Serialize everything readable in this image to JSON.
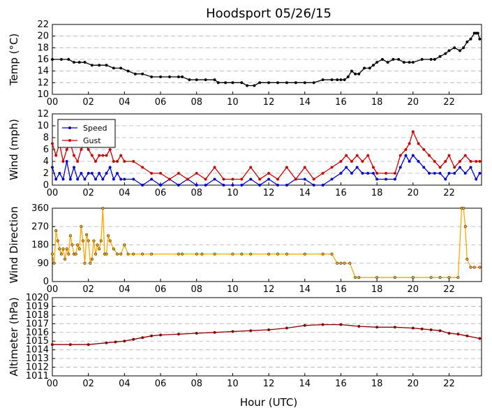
{
  "figure": {
    "title": "Hoodsport 05/26/15",
    "xlabel": "Hour (UTC)",
    "xtick_labels": [
      "00",
      "02",
      "04",
      "06",
      "08",
      "10",
      "12",
      "14",
      "16",
      "18",
      "20",
      "22"
    ],
    "xtick_hours": [
      0,
      2,
      4,
      6,
      8,
      10,
      12,
      14,
      16,
      18,
      20,
      22
    ],
    "xlim": [
      0,
      23.8
    ]
  },
  "chart_data": [
    {
      "type": "line",
      "ylabel": "Temp (°C)",
      "ylim": [
        10,
        22
      ],
      "yticks": [
        10,
        12,
        14,
        16,
        18,
        20,
        22
      ],
      "grid": true,
      "series": [
        {
          "color": "#000000",
          "x": [
            0,
            0.5,
            0.9,
            1.2,
            1.5,
            1.8,
            2.2,
            2.6,
            3.0,
            3.4,
            3.8,
            4.2,
            4.6,
            5.0,
            5.5,
            6.0,
            6.5,
            7.0,
            7.2,
            7.6,
            8.0,
            8.5,
            9.0,
            9.2,
            9.6,
            10.0,
            10.5,
            10.8,
            11.2,
            11.5,
            12.0,
            12.5,
            13.0,
            13.5,
            14.0,
            14.5,
            15.0,
            15.5,
            15.8,
            16.0,
            16.2,
            16.4,
            16.6,
            16.8,
            17.0,
            17.3,
            17.6,
            17.8,
            18.0,
            18.3,
            18.6,
            18.9,
            19.2,
            19.5,
            19.8,
            20.0,
            20.5,
            21.0,
            21.2,
            21.5,
            21.8,
            22.0,
            22.3,
            22.6,
            22.8,
            23.0,
            23.2,
            23.4,
            23.5,
            23.6,
            23.7
          ],
          "y": [
            16,
            16,
            16,
            15.5,
            15.5,
            15.5,
            15,
            15,
            15,
            14.5,
            14.5,
            14,
            13.5,
            13.5,
            13,
            13,
            13,
            13,
            13,
            12.5,
            12.5,
            12.5,
            12.5,
            12,
            12,
            12,
            12,
            11.5,
            11.5,
            12,
            12,
            12,
            12,
            12,
            12,
            12,
            12.5,
            12.5,
            12.5,
            12.5,
            12.5,
            13,
            14,
            13.5,
            13.5,
            14.5,
            14.5,
            15,
            15.5,
            16,
            15.5,
            16,
            16,
            15.5,
            15.5,
            15.5,
            16,
            16,
            16,
            16.5,
            17,
            17.5,
            18,
            17.5,
            18,
            19,
            19.5,
            20.5,
            20.5,
            20.5,
            19.5
          ]
        }
      ]
    },
    {
      "type": "line",
      "ylabel": "Wind (mph)",
      "ylim": [
        0,
        12
      ],
      "yticks": [
        0,
        2,
        4,
        6,
        8,
        10,
        12
      ],
      "grid": true,
      "legend": "top-left",
      "series": [
        {
          "name": "Speed",
          "color": "#0000cc",
          "x": [
            0,
            0.2,
            0.4,
            0.6,
            0.8,
            1.0,
            1.2,
            1.4,
            1.6,
            1.8,
            2.0,
            2.2,
            2.4,
            2.6,
            2.8,
            3.0,
            3.2,
            3.4,
            3.6,
            3.8,
            4.0,
            4.5,
            5.0,
            5.5,
            6.0,
            6.5,
            7.0,
            7.5,
            8.0,
            8.5,
            9.0,
            9.5,
            10.0,
            10.5,
            11.0,
            11.5,
            12.0,
            12.5,
            13.0,
            13.5,
            14.0,
            14.5,
            15.0,
            15.5,
            16.0,
            16.3,
            16.6,
            16.9,
            17.2,
            17.5,
            17.8,
            18.0,
            18.5,
            19.0,
            19.3,
            19.6,
            19.8,
            20.0,
            20.3,
            20.6,
            20.9,
            21.2,
            21.5,
            21.8,
            22.0,
            22.3,
            22.6,
            22.9,
            23.2,
            23.5,
            23.7
          ],
          "y": [
            3,
            1,
            2,
            1,
            4,
            1,
            3,
            1,
            2,
            1,
            2,
            2,
            1,
            2,
            1,
            2,
            3,
            1,
            2,
            1,
            1,
            1,
            0,
            1,
            0,
            1,
            0,
            1,
            0,
            0,
            1,
            0,
            0,
            0,
            1,
            0,
            1,
            0,
            0,
            1,
            1,
            0,
            0,
            1,
            2,
            3,
            2,
            3,
            2,
            2,
            2,
            1,
            1,
            1,
            3,
            5,
            4,
            5,
            4,
            3,
            2,
            2,
            2,
            1,
            2,
            2,
            3,
            2,
            3,
            1,
            2
          ]
        },
        {
          "name": "Gust",
          "color": "#cc0000",
          "x": [
            0,
            0.2,
            0.4,
            0.6,
            0.8,
            1.0,
            1.2,
            1.4,
            1.6,
            1.8,
            2.0,
            2.2,
            2.4,
            2.6,
            2.8,
            3.0,
            3.2,
            3.4,
            3.6,
            3.8,
            4.0,
            4.5,
            5.0,
            5.5,
            6.0,
            6.5,
            7.0,
            7.5,
            8.0,
            8.5,
            9.0,
            9.5,
            10.0,
            10.5,
            11.0,
            11.5,
            12.0,
            12.5,
            13.0,
            13.5,
            14.0,
            14.5,
            15.0,
            15.5,
            16.0,
            16.3,
            16.6,
            16.9,
            17.2,
            17.5,
            17.8,
            18.0,
            18.5,
            19.0,
            19.3,
            19.6,
            19.8,
            20.0,
            20.3,
            20.6,
            20.9,
            21.2,
            21.5,
            21.8,
            22.0,
            22.3,
            22.6,
            22.9,
            23.2,
            23.5,
            23.7
          ],
          "y": [
            7,
            5,
            7,
            4,
            6,
            7,
            5,
            4,
            6,
            7,
            6,
            5,
            4,
            5,
            5,
            5,
            6,
            4,
            4,
            5,
            4,
            4,
            3,
            2,
            2,
            1,
            2,
            1,
            2,
            1,
            3,
            1,
            1,
            1,
            3,
            1,
            2,
            1,
            3,
            1,
            3,
            1,
            2,
            3,
            4,
            5,
            4,
            5,
            4,
            5,
            3,
            2,
            2,
            2,
            5,
            6,
            7,
            9,
            7,
            6,
            5,
            4,
            3,
            4,
            5,
            3,
            4,
            5,
            4,
            4,
            4
          ]
        }
      ]
    },
    {
      "type": "line",
      "ylabel": "Wind Direction",
      "ylim": [
        0,
        360
      ],
      "yticks": [
        0,
        90,
        180,
        270,
        360
      ],
      "grid": true,
      "series": [
        {
          "color": "#ffa500",
          "x": [
            0,
            0.1,
            0.2,
            0.3,
            0.4,
            0.5,
            0.6,
            0.7,
            0.8,
            0.9,
            1.0,
            1.1,
            1.2,
            1.3,
            1.4,
            1.5,
            1.6,
            1.7,
            1.8,
            1.9,
            2.0,
            2.1,
            2.2,
            2.3,
            2.4,
            2.5,
            2.6,
            2.7,
            2.8,
            2.9,
            3.0,
            3.1,
            3.2,
            3.4,
            3.6,
            3.8,
            4.0,
            4.2,
            4.5,
            5.0,
            5.5,
            7.0,
            7.2,
            8.0,
            8.3,
            9.0,
            10.0,
            10.5,
            11.0,
            12.0,
            12.5,
            13.0,
            14.0,
            15.0,
            15.5,
            15.8,
            16.0,
            16.2,
            16.5,
            16.8,
            17.0,
            18.0,
            19.0,
            20.0,
            21.0,
            21.5,
            22.0,
            22.5,
            22.7,
            22.8,
            22.9,
            23.0,
            23.2,
            23.4,
            23.7
          ],
          "y": [
            135,
            90,
            250,
            200,
            160,
            135,
            160,
            110,
            160,
            135,
            225,
            180,
            135,
            135,
            180,
            160,
            270,
            200,
            90,
            230,
            200,
            90,
            110,
            200,
            135,
            180,
            160,
            200,
            360,
            135,
            135,
            225,
            200,
            160,
            135,
            135,
            180,
            135,
            135,
            135,
            135,
            135,
            135,
            135,
            135,
            135,
            135,
            135,
            135,
            135,
            135,
            135,
            135,
            135,
            135,
            90,
            90,
            90,
            90,
            20,
            20,
            20,
            20,
            20,
            20,
            20,
            20,
            20,
            360,
            360,
            270,
            110,
            70,
            70,
            70
          ]
        }
      ]
    },
    {
      "type": "line",
      "ylabel": "Altimeter (hPa)",
      "ylim": [
        1011,
        1020
      ],
      "yticks": [
        1011,
        1012,
        1013,
        1014,
        1015,
        1016,
        1017,
        1018,
        1019,
        1020
      ],
      "grid": true,
      "series": [
        {
          "color": "#8b0000",
          "x": [
            0,
            1,
            2,
            3,
            3.5,
            4,
            4.5,
            5,
            5.5,
            6,
            7,
            8,
            9,
            10,
            11,
            12,
            13,
            14,
            15,
            16,
            17,
            18,
            19,
            20,
            20.5,
            21,
            21.5,
            22,
            22.5,
            23,
            23.7
          ],
          "y": [
            1014.6,
            1014.6,
            1014.6,
            1014.8,
            1014.9,
            1015.0,
            1015.2,
            1015.4,
            1015.6,
            1015.7,
            1015.8,
            1015.9,
            1016.0,
            1016.1,
            1016.2,
            1016.3,
            1016.5,
            1016.8,
            1016.9,
            1016.9,
            1016.7,
            1016.6,
            1016.6,
            1016.5,
            1016.4,
            1016.3,
            1016.2,
            1015.9,
            1015.8,
            1015.6,
            1015.3
          ]
        }
      ]
    }
  ]
}
